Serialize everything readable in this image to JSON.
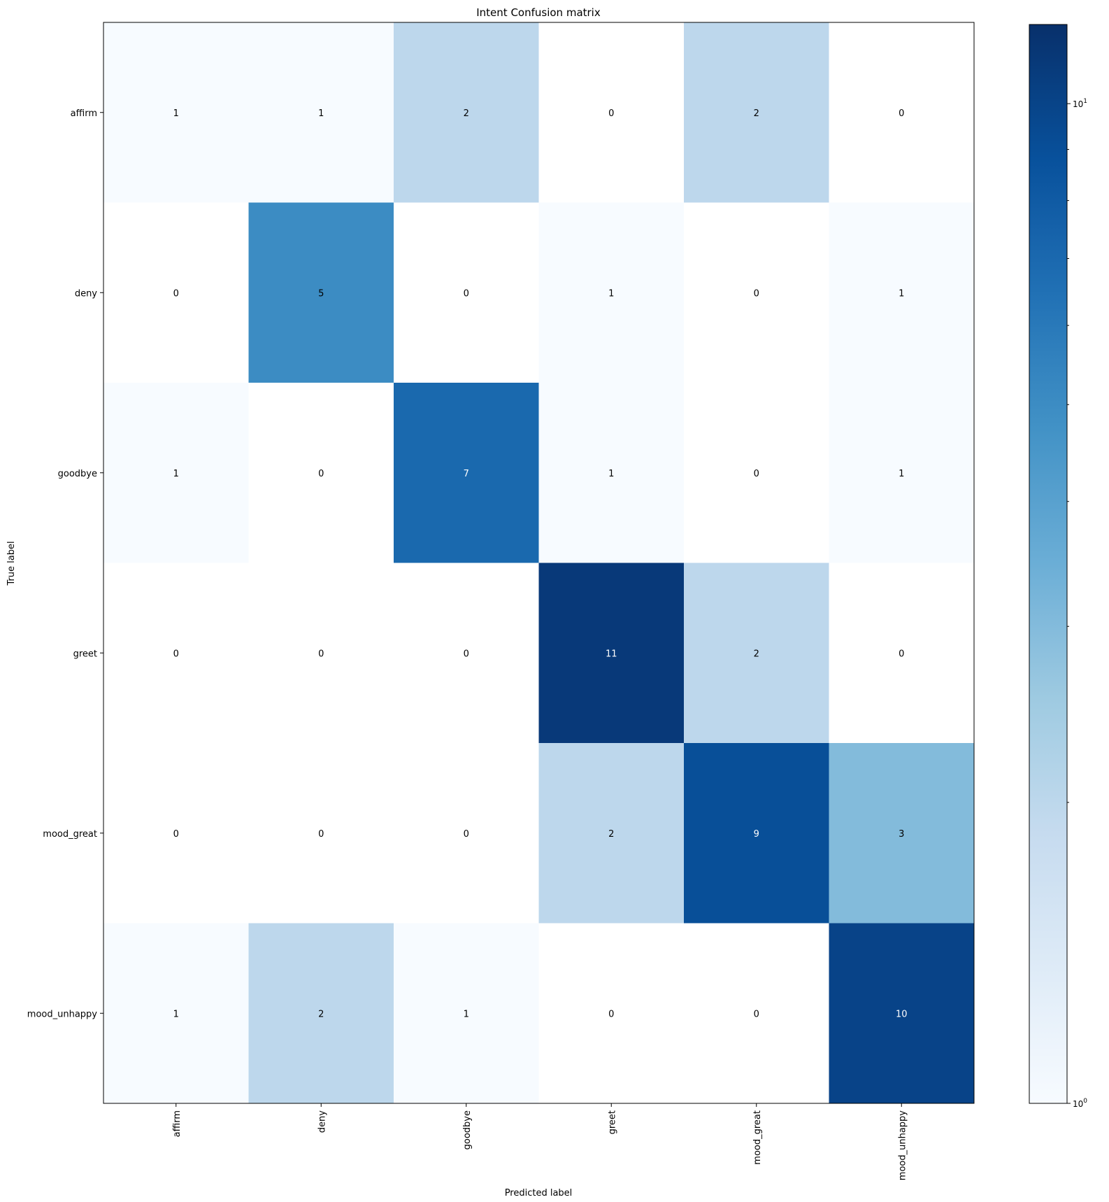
{
  "chart_data": {
    "type": "heatmap",
    "title": "Intent Confusion matrix",
    "xlabel": "Predicted label",
    "ylabel": "True label",
    "x_categories": [
      "affirm",
      "deny",
      "goodbye",
      "greet",
      "mood_great",
      "mood_unhappy"
    ],
    "y_categories": [
      "affirm",
      "deny",
      "goodbye",
      "greet",
      "mood_great",
      "mood_unhappy"
    ],
    "values": [
      [
        1,
        1,
        2,
        0,
        2,
        0
      ],
      [
        0,
        5,
        0,
        1,
        0,
        1
      ],
      [
        1,
        0,
        7,
        1,
        0,
        1
      ],
      [
        0,
        0,
        0,
        11,
        2,
        0
      ],
      [
        0,
        0,
        0,
        2,
        9,
        3
      ],
      [
        1,
        2,
        1,
        0,
        0,
        10
      ]
    ],
    "color_scale": "log",
    "colormap": "Blues",
    "colorbar": {
      "range": [
        1,
        12
      ],
      "major_ticks": [
        {
          "value": 1,
          "base": "10",
          "exp": "0"
        },
        {
          "value": 10,
          "base": "10",
          "exp": "1"
        }
      ],
      "minor_ticks": [
        2,
        3,
        4,
        5,
        6,
        7,
        8,
        9
      ]
    },
    "zero_color": "#ffffff",
    "text_color_dark": "#000000",
    "text_color_light": "#ffffff"
  }
}
